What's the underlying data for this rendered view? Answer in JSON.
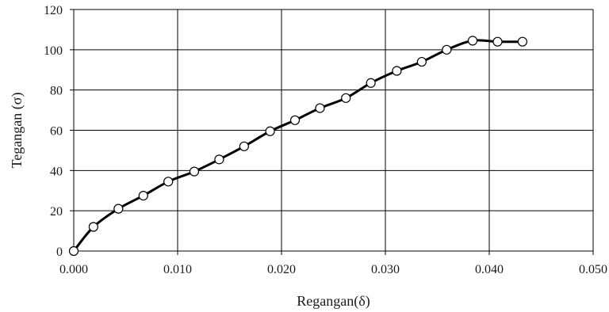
{
  "chart_data": {
    "type": "line",
    "xlabel": "Regangan(δ)",
    "ylabel": "Tegangan (σ)",
    "xlim": [
      0,
      0.05
    ],
    "ylim": [
      0,
      120
    ],
    "xticks": [
      "0.000",
      "0.010",
      "0.020",
      "0.030",
      "0.040",
      "0.050"
    ],
    "yticks": [
      "0",
      "20",
      "40",
      "60",
      "80",
      "100",
      "120"
    ],
    "grid": true,
    "legend": "none",
    "line_color": "#000000",
    "marker": "open-circle",
    "series": [
      {
        "x": [
          0.0,
          0.0019,
          0.0043,
          0.0067,
          0.0091,
          0.0116,
          0.014,
          0.0164,
          0.0189,
          0.0213,
          0.0237,
          0.0262,
          0.0286,
          0.0311,
          0.0335,
          0.0359,
          0.0384,
          0.0408,
          0.0432
        ],
        "y": [
          0,
          12,
          21,
          27.5,
          34.5,
          39.5,
          45.5,
          52,
          59.5,
          65,
          71,
          76,
          83.5,
          89.5,
          94,
          100,
          104.5,
          104,
          104
        ]
      }
    ]
  }
}
